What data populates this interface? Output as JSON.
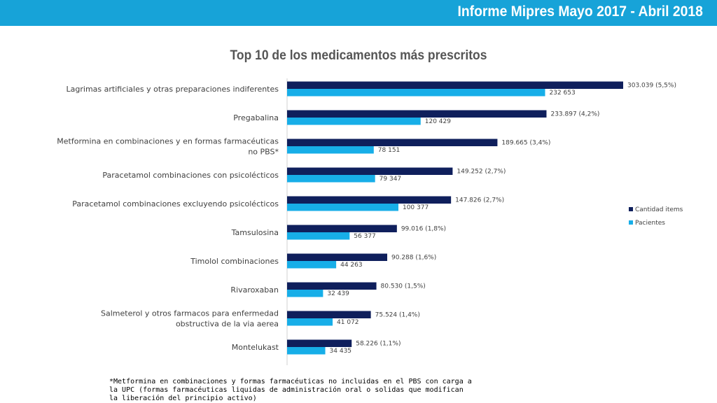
{
  "header": {
    "title": "Informe Mipres Mayo 2017 - Abril 2018"
  },
  "footnote": "*Metformina en combinaciones y formas farmacéuticas no incluidas en el PBS con carga a la UPC (formas farmacéuticas liquidas de administración oral o solidas que modifican la liberación del principio activo)",
  "colors": {
    "header": "#17a3d8",
    "cantidad": "#0f1f5c",
    "pacientes": "#17aee8"
  },
  "chart_data": {
    "type": "bar",
    "orientation": "horizontal",
    "title": "Top 10 de los medicamentos más prescritos",
    "categories": [
      "Lagrimas artificiales y otras preparaciones indiferentes",
      "Pregabalina",
      "Metformina en combinaciones y en formas farmacéuticas no PBS*",
      "Paracetamol combinaciones con psicolécticos",
      "Paracetamol combinaciones excluyendo psicolécticos",
      "Tamsulosina",
      "Timolol combinaciones",
      "Rivaroxaban",
      "Salmeterol y otros farmacos para enfermedad obstructiva de la via aerea",
      "Montelukast"
    ],
    "series": [
      {
        "name": "Cantidad items",
        "values": [
          303039,
          233897,
          189665,
          149252,
          147826,
          99016,
          90288,
          80530,
          75524,
          58226
        ],
        "labels": [
          "303.039 (5,5%)",
          "233.897 (4,2%)",
          "189.665 (3,4%)",
          "149.252 (2,7%)",
          "147.826 (2,7%)",
          "99.016 (1,8%)",
          "90.288 (1,6%)",
          "80.530 (1,5%)",
          "75.524 (1,4%)",
          "58.226 (1,1%)"
        ]
      },
      {
        "name": "Pacientes",
        "values": [
          232653,
          120429,
          78151,
          79347,
          100377,
          56377,
          44263,
          32439,
          41072,
          34435
        ],
        "labels": [
          "232 653",
          "120 429",
          "78 151",
          "79 347",
          "100 377",
          "56 377",
          "44 263",
          "32 439",
          "41 072",
          "34 435"
        ]
      }
    ],
    "xlim": [
      0,
      320000
    ],
    "grid": false,
    "legend": "right"
  }
}
